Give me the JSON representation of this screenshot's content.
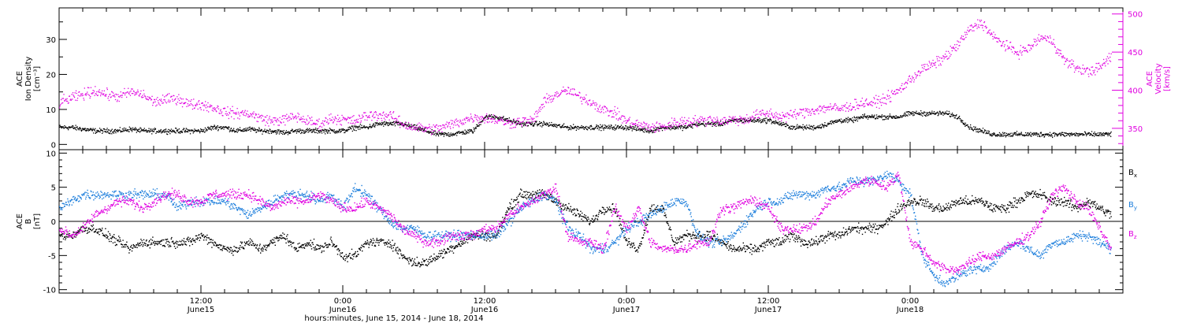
{
  "chart_data": [
    {
      "type": "scatter",
      "left_ylabel": [
        "ACE",
        "Ion Density",
        "[cm⁻³]"
      ],
      "right_ylabel": [
        "ACE",
        "Velocity",
        "[km/s]"
      ],
      "xlim": [
        6,
        96
      ],
      "left_ylim": [
        -1.5,
        39
      ],
      "right_ylim": [
        322,
        508
      ],
      "left_yticks": [
        0,
        10,
        20,
        30
      ],
      "right_yticks": [
        350,
        400,
        450,
        500
      ],
      "x": [
        6,
        7,
        8,
        9,
        10,
        11,
        12,
        13,
        14,
        15,
        16,
        17,
        18,
        19,
        20,
        21,
        22,
        23,
        24,
        25,
        26,
        27,
        28,
        29,
        30,
        31,
        32,
        33,
        34,
        35,
        36,
        37,
        38,
        39,
        40,
        41,
        42,
        43,
        44,
        45,
        46,
        47,
        48,
        49,
        50,
        51,
        52,
        53,
        54,
        55,
        56,
        57,
        58,
        59,
        60,
        61,
        62,
        63,
        64,
        65,
        66,
        67,
        68,
        69,
        70,
        71,
        72,
        73,
        74,
        75,
        76,
        77,
        78,
        79,
        80,
        81,
        82,
        83,
        84,
        85,
        86,
        87,
        88,
        89,
        90,
        91,
        92,
        93,
        94,
        95
      ],
      "series": [
        {
          "name": "Ion Density",
          "color": "#000000",
          "axis": "left",
          "values": [
            5,
            5,
            4.5,
            4,
            4,
            4,
            4.5,
            4,
            4,
            4,
            4,
            4,
            4,
            5,
            5,
            4,
            4.5,
            4,
            4,
            3.5,
            4,
            4,
            4,
            4,
            4,
            5,
            5,
            6,
            6,
            6,
            5,
            4,
            3,
            3,
            3.5,
            4,
            8,
            8,
            7,
            6,
            6,
            6,
            5.5,
            5,
            5,
            5,
            5,
            5,
            5,
            4.5,
            4,
            5,
            5,
            5,
            6,
            6,
            6,
            7,
            7,
            7,
            7,
            6,
            5,
            5,
            5,
            6,
            7,
            7,
            8,
            8,
            8,
            8,
            9,
            9,
            9,
            9,
            8,
            5,
            4,
            3,
            3,
            3,
            3,
            3,
            3,
            3,
            3,
            3,
            3,
            3
          ]
        },
        {
          "name": "Velocity",
          "color": "#e000e0",
          "axis": "right",
          "values": [
            384,
            390,
            395,
            400,
            395,
            392,
            398,
            395,
            385,
            388,
            390,
            382,
            382,
            378,
            372,
            370,
            370,
            364,
            360,
            362,
            366,
            360,
            356,
            364,
            362,
            360,
            367,
            368,
            367,
            356,
            352,
            350,
            350,
            355,
            360,
            365,
            364,
            362,
            357,
            360,
            360,
            385,
            395,
            400,
            392,
            385,
            375,
            370,
            360,
            355,
            352,
            352,
            358,
            360,
            360,
            362,
            360,
            362,
            362,
            368,
            370,
            366,
            368,
            372,
            375,
            378,
            376,
            380,
            384,
            384,
            390,
            400,
            415,
            428,
            435,
            445,
            460,
            480,
            490,
            470,
            460,
            450,
            455,
            470,
            465,
            440,
            430,
            425,
            430,
            445
          ]
        }
      ]
    },
    {
      "type": "scatter",
      "ylabel": [
        "ACE",
        "B",
        "[nT]"
      ],
      "xlim": [
        6,
        96
      ],
      "ylim": [
        -10.5,
        10.5
      ],
      "yticks": [
        -10,
        -5,
        0,
        5,
        10
      ],
      "x": [
        6,
        7,
        8,
        9,
        10,
        11,
        12,
        13,
        14,
        15,
        16,
        17,
        18,
        19,
        20,
        21,
        22,
        23,
        24,
        25,
        26,
        27,
        28,
        29,
        30,
        31,
        32,
        33,
        34,
        35,
        36,
        37,
        38,
        39,
        40,
        41,
        42,
        43,
        44,
        45,
        46,
        47,
        48,
        49,
        50,
        51,
        52,
        53,
        54,
        55,
        56,
        57,
        58,
        59,
        60,
        61,
        62,
        63,
        64,
        65,
        66,
        67,
        68,
        69,
        70,
        71,
        72,
        73,
        74,
        75,
        76,
        77,
        78,
        79,
        80,
        81,
        82,
        83,
        84,
        85,
        86,
        87,
        88,
        89,
        90,
        91,
        92,
        93,
        94,
        95
      ],
      "series": [
        {
          "name": "Bx",
          "label_main": "B",
          "label_sub": "x",
          "color": "#000000",
          "values": [
            -2,
            -2,
            -1,
            -1,
            -2,
            -3,
            -4,
            -3,
            -3,
            -3,
            -3,
            -3,
            -2,
            -3,
            -4,
            -4,
            -3,
            -4,
            -3,
            -2,
            -4,
            -3,
            -4,
            -3,
            -5,
            -5,
            -3,
            -3,
            -3,
            -5,
            -6,
            -6,
            -5,
            -4,
            -3,
            -2,
            -2,
            -2,
            2,
            4,
            4,
            4,
            3,
            2,
            1,
            0,
            2,
            2,
            -3,
            -4,
            2,
            2,
            -3,
            -2,
            -2,
            -2,
            -3,
            -4,
            -4,
            -4,
            -3,
            -3,
            -2,
            -3,
            -3,
            -2,
            -2,
            -1,
            -1,
            -1,
            0,
            2,
            3,
            3,
            2,
            2,
            3,
            3,
            3,
            2,
            2,
            3,
            4,
            4,
            3,
            3,
            2,
            3,
            2,
            1
          ]
        },
        {
          "name": "By",
          "label_main": "B",
          "label_sub": "y",
          "color": "#1e7fdc",
          "values": [
            2,
            3,
            4,
            4,
            4,
            4,
            4,
            4,
            4,
            4,
            2,
            3,
            3,
            3,
            3,
            2,
            1,
            2,
            3,
            4,
            4,
            4,
            3,
            4,
            2,
            5,
            4,
            2,
            0,
            -1,
            -1,
            -2,
            -2,
            -2,
            -2,
            -2,
            -2,
            -2,
            0,
            2,
            3,
            4,
            3,
            -1,
            -2,
            -4,
            -4,
            -3,
            -1,
            0,
            1,
            2,
            3,
            3,
            -2,
            -3,
            -3,
            -2,
            0,
            2,
            3,
            3,
            4,
            4,
            4,
            5,
            5,
            6,
            6,
            6,
            7,
            6,
            4,
            -5,
            -8,
            -9,
            -8,
            -7,
            -7,
            -6,
            -4,
            -3,
            -4,
            -5,
            -3,
            -3,
            -2,
            -2,
            -3,
            -4
          ]
        },
        {
          "name": "Bz",
          "label_main": "B",
          "label_sub": "z",
          "color": "#e000e0",
          "values": [
            -1,
            -2,
            -1,
            1,
            2,
            3,
            3,
            2,
            3,
            4,
            4,
            3,
            3,
            4,
            4,
            4,
            4,
            3,
            2,
            3,
            3,
            3,
            4,
            3,
            2,
            2,
            3,
            2,
            1,
            -1,
            -2,
            -3,
            -3,
            -2,
            -2,
            -2,
            -1,
            -1,
            1,
            2,
            3,
            4,
            5,
            -2,
            -3,
            -3,
            -4,
            2,
            -1,
            2,
            -3,
            -4,
            -4,
            -4,
            -3,
            -3,
            2,
            2,
            3,
            3,
            2,
            -1,
            -1,
            -1,
            0,
            3,
            4,
            5,
            6,
            6,
            5,
            7,
            -3,
            -4,
            -6,
            -7,
            -7,
            -6,
            -5,
            -5,
            -4,
            -3,
            -2,
            0,
            4,
            5,
            3,
            2,
            -1,
            -4
          ]
        }
      ]
    }
  ],
  "x_axis": {
    "ticks": [
      {
        "h": 18,
        "line1": "12:00",
        "line2": "June15"
      },
      {
        "h": 30,
        "line1": "0:00",
        "line2": "June16"
      },
      {
        "h": 42,
        "line1": "12:00",
        "line2": "June16"
      },
      {
        "h": 54,
        "line1": "0:00",
        "line2": "June17"
      },
      {
        "h": 66,
        "line1": "12:00",
        "line2": "June17"
      },
      {
        "h": 78,
        "line1": "0:00",
        "line2": "June18"
      }
    ],
    "title": "hours:minutes, June 15, 2014 - June 18, 2014"
  },
  "colors": {
    "black": "#000000",
    "magenta": "#e000e0",
    "blue": "#1e7fdc"
  }
}
